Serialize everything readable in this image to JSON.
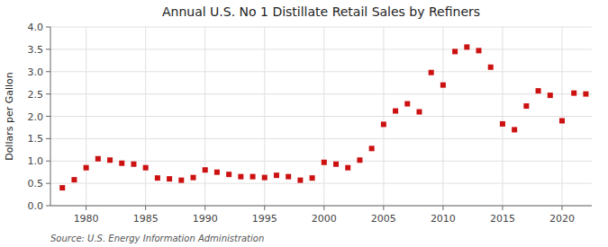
{
  "chart_data": {
    "type": "scatter",
    "title": "Annual U.S. No 1 Distillate Retail Sales by Refiners",
    "y_label": "Dollars per Gallon",
    "annotations": [
      "Source: U.S. Energy Information Administration"
    ],
    "x": [
      1978,
      1979,
      1980,
      1981,
      1982,
      1983,
      1984,
      1985,
      1986,
      1987,
      1988,
      1989,
      1990,
      1991,
      1992,
      1993,
      1994,
      1995,
      1996,
      1997,
      1998,
      1999,
      2000,
      2001,
      2002,
      2003,
      2004,
      2005,
      2006,
      2007,
      2008,
      2009,
      2010,
      2011,
      2012,
      2013,
      2014,
      2015,
      2016,
      2017,
      2018,
      2019,
      2020,
      2021,
      2022
    ],
    "values": [
      0.4,
      0.58,
      0.85,
      1.05,
      1.02,
      0.95,
      0.93,
      0.85,
      0.62,
      0.6,
      0.57,
      0.63,
      0.8,
      0.75,
      0.7,
      0.65,
      0.65,
      0.63,
      0.68,
      0.65,
      0.57,
      0.62,
      0.97,
      0.93,
      0.85,
      1.02,
      1.28,
      1.82,
      2.12,
      2.28,
      2.1,
      2.98,
      2.7,
      3.45,
      3.55,
      3.47,
      3.1,
      1.83,
      1.7,
      2.23,
      2.57,
      2.47,
      1.9,
      2.52,
      2.5
    ],
    "color": "#cc1111",
    "marker": "square",
    "grid": true,
    "xlim": [
      1977.0,
      2022.5
    ],
    "ylim": [
      0.0,
      4.0
    ],
    "xticks": [
      1980,
      1985,
      1990,
      1995,
      2000,
      2005,
      2010,
      2015,
      2020
    ],
    "yticks": [
      {
        "value": 0.0,
        "label": "0.0"
      },
      0.5,
      {
        "value": 1.0,
        "label": "1.0"
      },
      1.5,
      {
        "value": 2.0,
        "label": "2.0"
      },
      2.5,
      {
        "value": 3.0,
        "label": "3.0"
      },
      3.5,
      {
        "value": 4.0,
        "label": "4.0"
      }
    ]
  }
}
